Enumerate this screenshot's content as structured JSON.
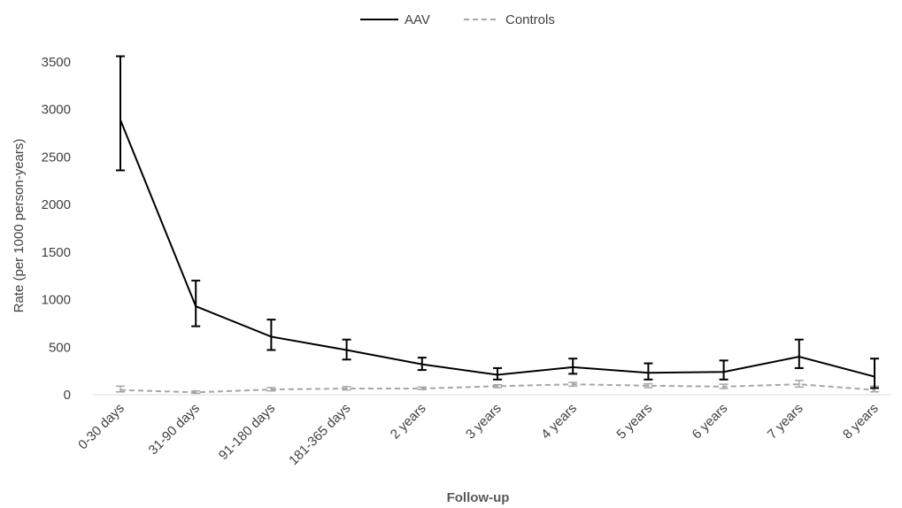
{
  "chart_data": {
    "type": "line",
    "xlabel": "Follow-up",
    "ylabel": "Rate (per 1000 person-years)",
    "ylim": [
      0,
      3500
    ],
    "yticks": [
      0,
      500,
      1000,
      1500,
      2000,
      2500,
      3000,
      3500
    ],
    "grid": false,
    "legend_position": "top-center",
    "categories": [
      "0-30 days",
      "31-90 days",
      "91-180 days",
      "181-365 days",
      "2 years",
      "3 years",
      "4 years",
      "5 years",
      "6 years",
      "7 years",
      "8 years"
    ],
    "series": [
      {
        "name": "AAV",
        "color": "#000000",
        "dash": "solid",
        "values": [
          2890,
          930,
          610,
          470,
          320,
          210,
          290,
          230,
          240,
          400,
          190
        ],
        "lower": [
          2360,
          720,
          470,
          370,
          260,
          160,
          220,
          160,
          160,
          280,
          70
        ],
        "upper": [
          3560,
          1200,
          790,
          580,
          390,
          280,
          380,
          330,
          360,
          580,
          380
        ]
      },
      {
        "name": "Controls",
        "color": "#a6a6a6",
        "dash": "dashed",
        "values": [
          50,
          25,
          55,
          65,
          65,
          90,
          110,
          95,
          85,
          110,
          50
        ],
        "lower": [
          30,
          15,
          40,
          50,
          55,
          75,
          90,
          75,
          65,
          80,
          30
        ],
        "upper": [
          90,
          40,
          75,
          85,
          80,
          105,
          130,
          115,
          110,
          150,
          90
        ]
      }
    ]
  }
}
